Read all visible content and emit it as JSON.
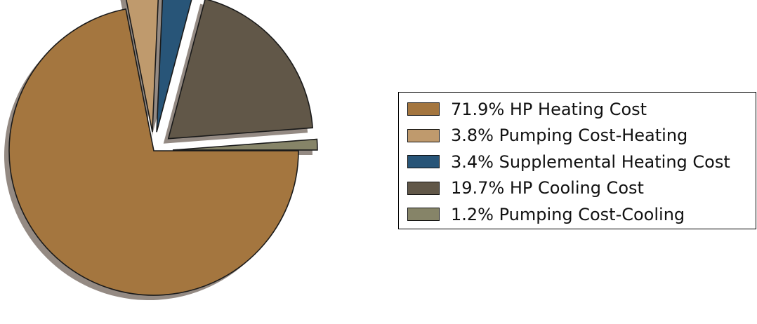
{
  "chart_data": {
    "type": "pie",
    "title": "",
    "start_angle_deg": 0,
    "direction": "clockwise",
    "shadow": true,
    "legend_position": "right",
    "slices": [
      {
        "label": "71.9% HP Heating Cost",
        "value": 71.9,
        "color": "#a4763f",
        "exploded": false
      },
      {
        "label": "3.8% Pumping Cost-Heating",
        "value": 3.8,
        "color": "#bf9a6d",
        "exploded": true
      },
      {
        "label": "3.4% Supplemental Heating Cost",
        "value": 3.4,
        "color": "#285578",
        "exploded": true
      },
      {
        "label": "19.7% HP Cooling Cost",
        "value": 19.7,
        "color": "#615748",
        "exploded": true
      },
      {
        "label": "1.2% Pumping Cost-Cooling",
        "value": 1.2,
        "color": "#868468",
        "exploded": true
      }
    ]
  },
  "colors": {
    "shadow": "#948a83",
    "edge": "#1a1a1a"
  }
}
